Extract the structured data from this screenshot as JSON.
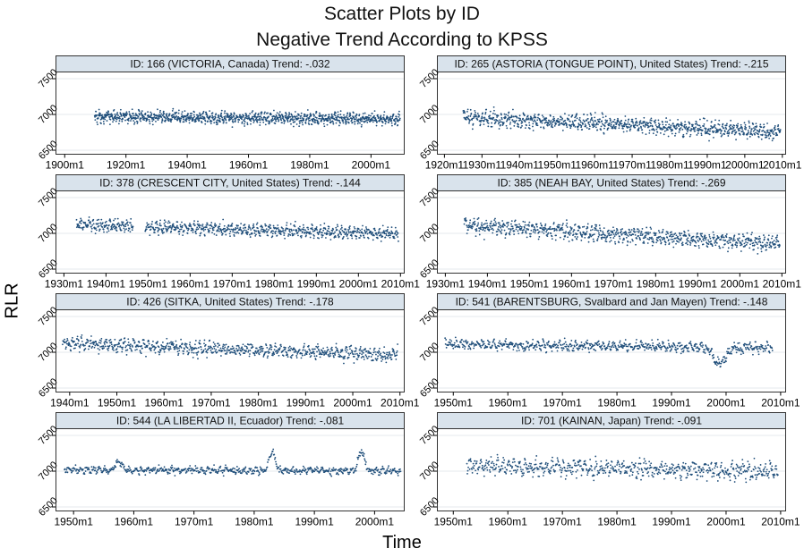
{
  "figure": {
    "title": "Scatter Plots by ID",
    "subtitle": "Negative Trend According to KPSS",
    "ylabel": "RLR",
    "xlabel": "Time",
    "point_color": "#1f4e7a",
    "strip_color": "#d9e3ec"
  },
  "chart_data": [
    {
      "type": "scatter",
      "panel_title": "ID: 166 (VICTORIA, Canada) Trend: -.032",
      "xlim": [
        1897,
        2011
      ],
      "ylim": [
        6450,
        7600
      ],
      "x_ticks": [
        1900,
        1920,
        1940,
        1960,
        1980,
        2000
      ],
      "x_tick_labels": [
        "1900m1",
        "1920m1",
        "1940m1",
        "1960m1",
        "1980m1",
        "2000m1"
      ],
      "y_ticks": [
        6500,
        7000,
        7500
      ],
      "y_tick_labels": [
        "6500",
        "7000",
        "7500"
      ],
      "series": [
        {
          "x_start": 1909.8,
          "x_end": 2009.5,
          "level_start": 6970,
          "level_end": 6930,
          "spread": 110,
          "gaps": []
        }
      ]
    },
    {
      "type": "scatter",
      "panel_title": "ID: 265 (ASTORIA (TONGUE POINT), United States) Trend: -.215",
      "xlim": [
        1918,
        2011
      ],
      "ylim": [
        6450,
        7600
      ],
      "x_ticks": [
        1920,
        1930,
        1940,
        1950,
        1960,
        1970,
        1980,
        1990,
        2000,
        2010
      ],
      "x_tick_labels": [
        "1920m1",
        "1930m1",
        "1940m1",
        "1950m1",
        "1960m1",
        "1970m1",
        "1980m1",
        "1990m1",
        "2000m1",
        "2010m1"
      ],
      "y_ticks": [
        6500,
        7000,
        7500
      ],
      "y_tick_labels": [
        "6500",
        "7000",
        "7500"
      ],
      "series": [
        {
          "x_start": 1925,
          "x_end": 2009.5,
          "level_start": 6960,
          "level_end": 6750,
          "spread": 140,
          "gaps": []
        }
      ]
    },
    {
      "type": "scatter",
      "panel_title": "ID: 378 (CRESCENT CITY, United States) Trend: -.144",
      "xlim": [
        1928,
        2011
      ],
      "ylim": [
        6450,
        7600
      ],
      "x_ticks": [
        1930,
        1940,
        1950,
        1960,
        1970,
        1980,
        1990,
        2000,
        2010
      ],
      "x_tick_labels": [
        "1930m1",
        "1940m1",
        "1950m1",
        "1960m1",
        "1970m1",
        "1980m1",
        "1990m1",
        "2000m1",
        "2010m1"
      ],
      "y_ticks": [
        6500,
        7000,
        7500
      ],
      "y_tick_labels": [
        "6500",
        "7000",
        "7500"
      ],
      "series": [
        {
          "x_start": 1933,
          "x_end": 2009.5,
          "level_start": 7120,
          "level_end": 6990,
          "spread": 120,
          "gaps": [
            [
              1946.5,
              1949.3
            ]
          ]
        }
      ]
    },
    {
      "type": "scatter",
      "panel_title": "ID: 385 (NEAH BAY, United States) Trend: -.269",
      "xlim": [
        1928,
        2011
      ],
      "ylim": [
        6450,
        7600
      ],
      "x_ticks": [
        1930,
        1940,
        1950,
        1960,
        1970,
        1980,
        1990,
        2000,
        2010
      ],
      "x_tick_labels": [
        "1930m1",
        "1940m1",
        "1950m1",
        "1960m1",
        "1970m1",
        "1980m1",
        "1990m1",
        "2000m1",
        "2010m1"
      ],
      "y_ticks": [
        6500,
        7000,
        7500
      ],
      "y_tick_labels": [
        "6500",
        "7000",
        "7500"
      ],
      "series": [
        {
          "x_start": 1934.5,
          "x_end": 2009.5,
          "level_start": 7110,
          "level_end": 6850,
          "spread": 150,
          "gaps": []
        }
      ]
    },
    {
      "type": "scatter",
      "panel_title": "ID: 426 (SITKA, United States) Trend: -.178",
      "xlim": [
        1937,
        2011
      ],
      "ylim": [
        6450,
        7600
      ],
      "x_ticks": [
        1940,
        1950,
        1960,
        1970,
        1980,
        1990,
        2000,
        2010
      ],
      "x_tick_labels": [
        "1940m1",
        "1950m1",
        "1960m1",
        "1970m1",
        "1980m1",
        "1990m1",
        "2000m1",
        "2010m1"
      ],
      "y_ticks": [
        6500,
        7000,
        7500
      ],
      "y_tick_labels": [
        "6500",
        "7000",
        "7500"
      ],
      "series": [
        {
          "x_start": 1938.5,
          "x_end": 2009.5,
          "level_start": 7130,
          "level_end": 6960,
          "spread": 130,
          "gaps": []
        }
      ]
    },
    {
      "type": "scatter",
      "panel_title": "ID: 541 (BARENTSBURG, Svalbard and Jan Mayen) Trend: -.148",
      "xlim": [
        1947,
        2011
      ],
      "ylim": [
        6450,
        7600
      ],
      "x_ticks": [
        1950,
        1960,
        1970,
        1980,
        1990,
        2000,
        2010
      ],
      "x_tick_labels": [
        "1950m1",
        "1960m1",
        "1970m1",
        "1980m1",
        "1990m1",
        "2000m1",
        "2010m1"
      ],
      "y_ticks": [
        6500,
        7000,
        7500
      ],
      "y_tick_labels": [
        "6500",
        "7000",
        "7500"
      ],
      "series": [
        {
          "x_start": 1948.5,
          "x_end": 2008.5,
          "level_start": 7110,
          "level_end": 7060,
          "spread": 100,
          "gaps": []
        }
      ],
      "dip": {
        "center": 1998.8,
        "width": 1.6,
        "depth": 230
      }
    },
    {
      "type": "scatter",
      "panel_title": "ID: 544 (LA LIBERTAD II, Ecuador) Trend: -.081",
      "xlim": [
        1947,
        2005
      ],
      "ylim": [
        6450,
        7600
      ],
      "x_ticks": [
        1950,
        1960,
        1970,
        1980,
        1990,
        2000
      ],
      "x_tick_labels": [
        "1950m1",
        "1960m1",
        "1970m1",
        "1980m1",
        "1990m1",
        "2000m1"
      ],
      "y_ticks": [
        6500,
        7000,
        7500
      ],
      "y_tick_labels": [
        "6500",
        "7000",
        "7500"
      ],
      "series": [
        {
          "x_start": 1948.5,
          "x_end": 2004.3,
          "level_start": 7020,
          "level_end": 7000,
          "spread": 70,
          "gaps": []
        }
      ],
      "peaks": [
        {
          "center": 1957.5,
          "height": 120
        },
        {
          "center": 1983.0,
          "height": 260
        },
        {
          "center": 1997.8,
          "height": 280
        }
      ]
    },
    {
      "type": "scatter",
      "panel_title": "ID: 701 (KAINAN, Japan) Trend: -.091",
      "xlim": [
        1947,
        2011
      ],
      "ylim": [
        6450,
        7600
      ],
      "x_ticks": [
        1950,
        1960,
        1970,
        1980,
        1990,
        2000,
        2010
      ],
      "x_tick_labels": [
        "1950m1",
        "1960m1",
        "1970m1",
        "1980m1",
        "1990m1",
        "2000m1",
        "2010m1"
      ],
      "y_ticks": [
        6500,
        7000,
        7500
      ],
      "y_tick_labels": [
        "6500",
        "7000",
        "7500"
      ],
      "series": [
        {
          "x_start": 1952.5,
          "x_end": 2009.5,
          "level_start": 7080,
          "level_end": 6990,
          "spread": 170,
          "gaps": []
        }
      ]
    }
  ]
}
